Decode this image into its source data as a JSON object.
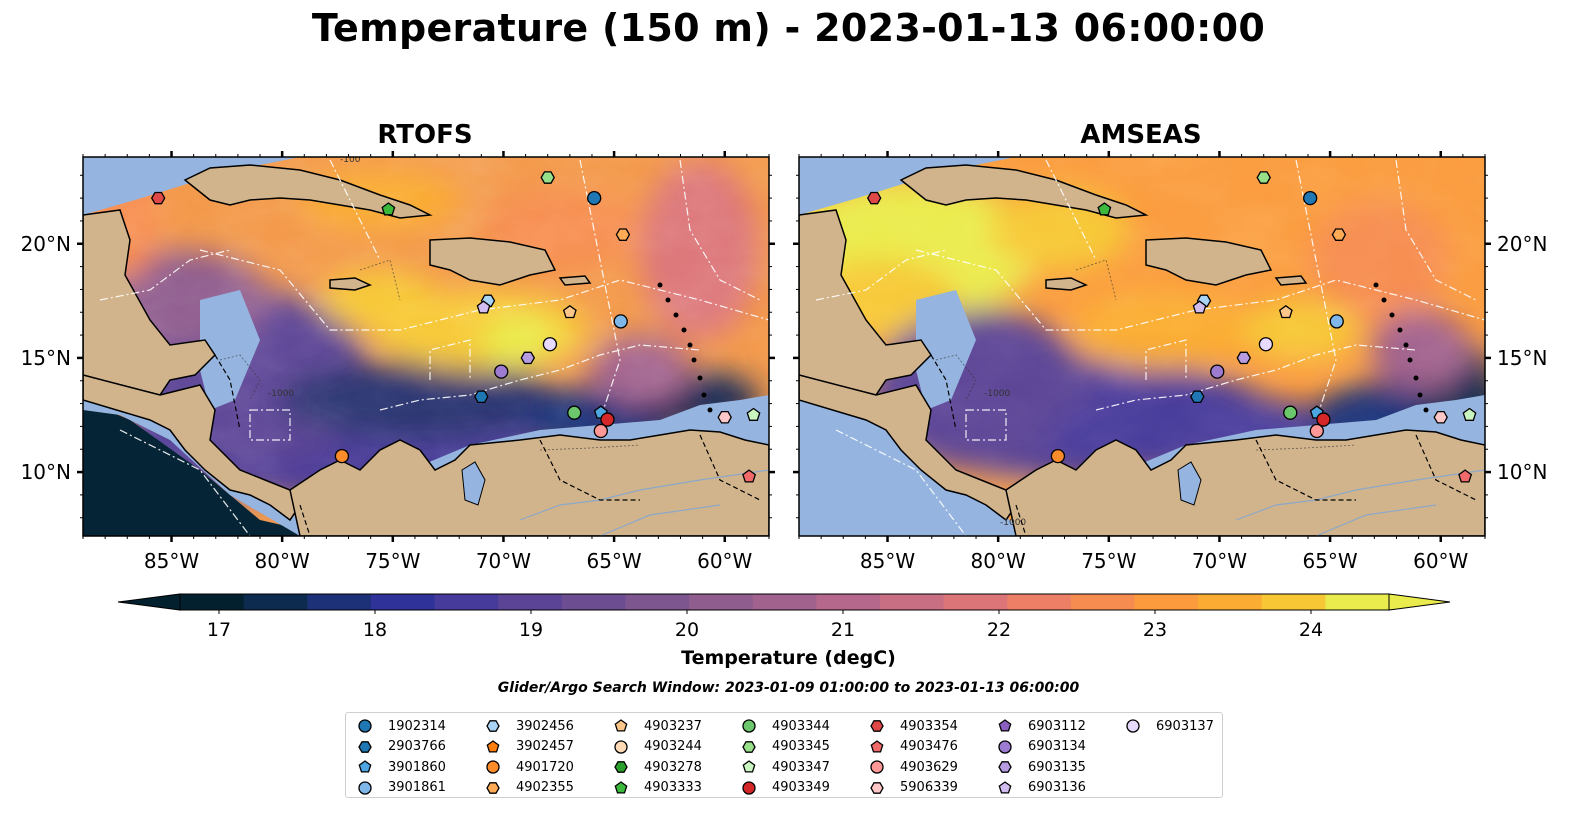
{
  "title": "Temperature (150 m) - 2023-01-13 06:00:00",
  "panels": [
    {
      "title": "RTOFS"
    },
    {
      "title": "AMSEAS"
    }
  ],
  "axes": {
    "lon_ticks": [
      "85°W",
      "80°W",
      "75°W",
      "70°W",
      "65°W",
      "60°W"
    ],
    "lat_ticks": [
      "20°N",
      "15°N",
      "10°N"
    ],
    "lon_values": [
      -85,
      -80,
      -75,
      -70,
      -65,
      -60
    ],
    "lat_values": [
      20,
      15,
      10
    ],
    "lon_range": [
      -89,
      -58
    ],
    "lat_range": [
      7.2,
      23.8
    ]
  },
  "contour_labels": [
    "-1000",
    "-100"
  ],
  "colorbar": {
    "label": "Temperature (degC)",
    "ticks": [
      "17",
      "18",
      "19",
      "20",
      "21",
      "22",
      "23",
      "24"
    ],
    "range": [
      16.75,
      24.5
    ],
    "extend": "both",
    "colormap": "thermal",
    "colors": [
      "#03202e",
      "#0c2b4f",
      "#1c3177",
      "#2f3399",
      "#463b9a",
      "#5b4495",
      "#6d4d91",
      "#7e568f",
      "#8f5d8e",
      "#a1628d",
      "#b5688b",
      "#c96f84",
      "#dc7578",
      "#ec7f66",
      "#f78c50",
      "#fb9b3e",
      "#fbac33",
      "#f7c735",
      "#eaeb4c"
    ]
  },
  "search_window": "Glider/Argo Search Window: 2023-01-09 01:00:00 to 2023-01-13 06:00:00",
  "land_color": "#d2b48c",
  "shelf_color": "#95b5e0",
  "legend": [
    {
      "id": "1902314",
      "marker": "circle",
      "color": "#1f77b4"
    },
    {
      "id": "2903766",
      "marker": "hexagon",
      "color": "#1f77b4"
    },
    {
      "id": "3901860",
      "marker": "pentagon",
      "color": "#4da6e0"
    },
    {
      "id": "3901861",
      "marker": "circle",
      "color": "#7fb8e8"
    },
    {
      "id": "3902456",
      "marker": "hexagon",
      "color": "#aad4f5"
    },
    {
      "id": "3902457",
      "marker": "pentagon",
      "color": "#ff7f0e"
    },
    {
      "id": "4901720",
      "marker": "circle",
      "color": "#ff8c2a"
    },
    {
      "id": "4902355",
      "marker": "hexagon",
      "color": "#ffaa55"
    },
    {
      "id": "4903237",
      "marker": "pentagon",
      "color": "#ffc68a"
    },
    {
      "id": "4903244",
      "marker": "circle",
      "color": "#ffdbb5"
    },
    {
      "id": "4903278",
      "marker": "hexagon",
      "color": "#2ca02c"
    },
    {
      "id": "4903333",
      "marker": "pentagon",
      "color": "#3cb83c"
    },
    {
      "id": "4903344",
      "marker": "circle",
      "color": "#6cc66c"
    },
    {
      "id": "4903345",
      "marker": "hexagon",
      "color": "#98df8a"
    },
    {
      "id": "4903347",
      "marker": "pentagon",
      "color": "#c8f5c0"
    },
    {
      "id": "4903349",
      "marker": "circle",
      "color": "#d62728"
    },
    {
      "id": "4903354",
      "marker": "hexagon",
      "color": "#e04848"
    },
    {
      "id": "4903476",
      "marker": "pentagon",
      "color": "#f06a6a"
    },
    {
      "id": "4903629",
      "marker": "circle",
      "color": "#ff9896"
    },
    {
      "id": "5906339",
      "marker": "hexagon",
      "color": "#ffc8c8"
    },
    {
      "id": "6903112",
      "marker": "pentagon",
      "color": "#8a5fc0"
    },
    {
      "id": "6903134",
      "marker": "circle",
      "color": "#9d7bd0"
    },
    {
      "id": "6903135",
      "marker": "hexagon",
      "color": "#b79be0"
    },
    {
      "id": "6903136",
      "marker": "pentagon",
      "color": "#d2bdf0"
    },
    {
      "id": "6903137",
      "marker": "circle",
      "color": "#e8daff"
    }
  ],
  "observations": [
    {
      "id": "4903354",
      "lon": -85.6,
      "lat": 22.0
    },
    {
      "id": "4903333",
      "lon": -75.2,
      "lat": 21.5
    },
    {
      "id": "4903345",
      "lon": -68.0,
      "lat": 22.9
    },
    {
      "id": "1902314",
      "lon": -65.9,
      "lat": 22.0
    },
    {
      "id": "4902355",
      "lon": -64.6,
      "lat": 20.4
    },
    {
      "id": "3902456",
      "lon": -70.7,
      "lat": 17.5
    },
    {
      "id": "6903136",
      "lon": -70.9,
      "lat": 17.2
    },
    {
      "id": "4903237",
      "lon": -67.0,
      "lat": 17.0
    },
    {
      "id": "3901861",
      "lon": -64.7,
      "lat": 16.6
    },
    {
      "id": "6903137",
      "lon": -67.9,
      "lat": 15.6
    },
    {
      "id": "6903135",
      "lon": -68.9,
      "lat": 15.0
    },
    {
      "id": "6903134",
      "lon": -70.1,
      "lat": 14.4
    },
    {
      "id": "2903766",
      "lon": -71.0,
      "lat": 13.3
    },
    {
      "id": "4903344",
      "lon": -66.8,
      "lat": 12.6
    },
    {
      "id": "3901860",
      "lon": -65.6,
      "lat": 12.6
    },
    {
      "id": "4903349",
      "lon": -65.3,
      "lat": 12.3
    },
    {
      "id": "4903629",
      "lon": -65.6,
      "lat": 11.8
    },
    {
      "id": "5906339",
      "lon": -60.0,
      "lat": 12.4
    },
    {
      "id": "4903347",
      "lon": -58.7,
      "lat": 12.5
    },
    {
      "id": "4901720",
      "lon": -77.3,
      "lat": 10.7
    },
    {
      "id": "4903476",
      "lon": -58.9,
      "lat": 9.8
    }
  ]
}
